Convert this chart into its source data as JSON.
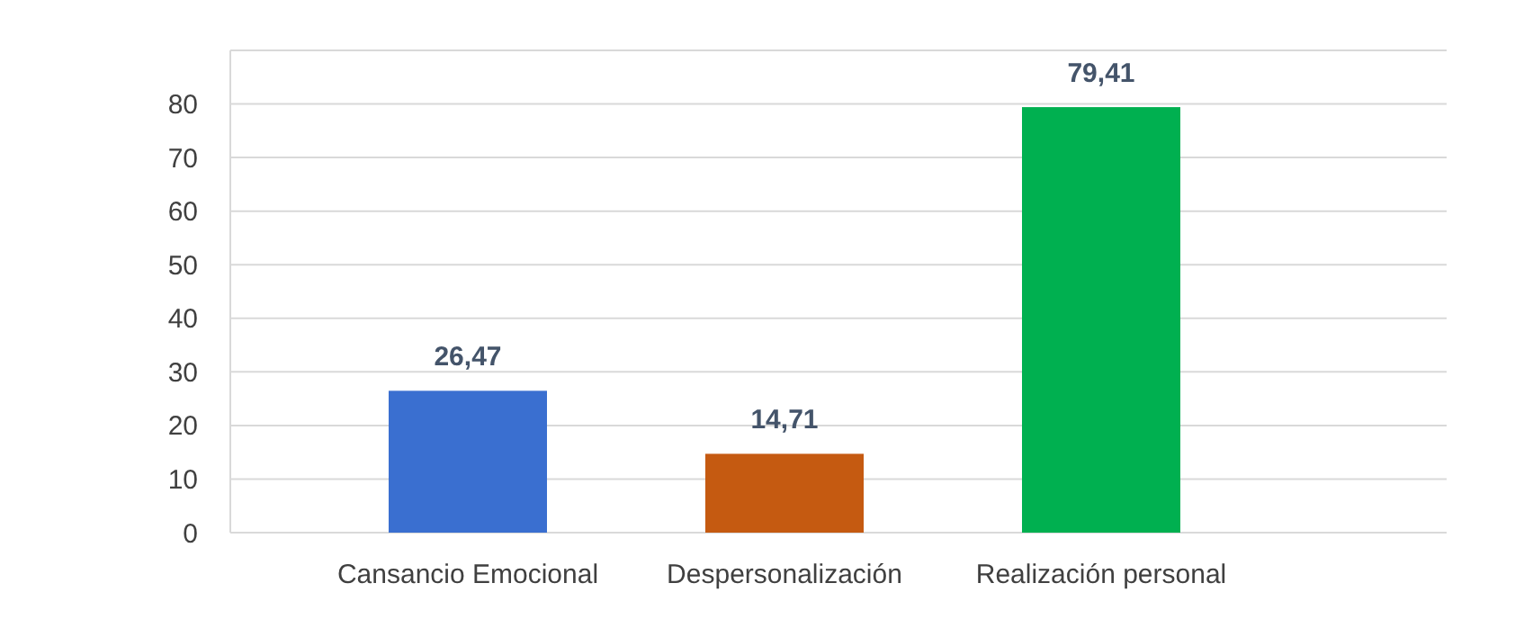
{
  "chart_data": {
    "type": "bar",
    "categories": [
      "Cansancio Emocional",
      "Despersonalización",
      "Realización personal"
    ],
    "values": [
      26.47,
      14.71,
      79.41
    ],
    "colors": [
      "#3a6fd0",
      "#c55a11",
      "#00b050"
    ],
    "value_labels": [
      "26,47",
      "14,71",
      "79,41"
    ],
    "ylim": [
      0,
      90
    ],
    "yticks": [
      0,
      10,
      20,
      30,
      40,
      50,
      60,
      70,
      80,
      {
        "value": 90,
        "label": null
      }
    ],
    "grid": "y"
  }
}
